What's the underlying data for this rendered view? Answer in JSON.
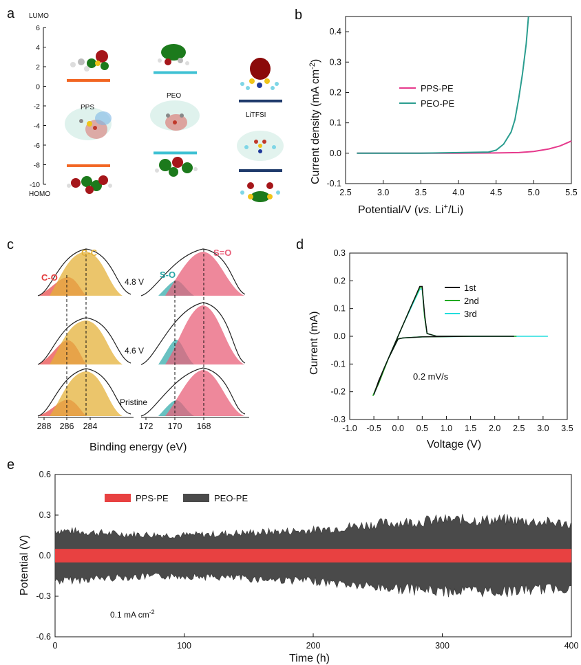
{
  "chart_data": [
    {
      "panel": "a",
      "type": "other",
      "ylabel_top": "LUMO",
      "ylabel_bottom": "HOMO",
      "yticks": [
        "6",
        "4",
        "2",
        "0",
        "-2",
        "-4",
        "-6",
        "-8",
        "-10"
      ],
      "ylim": [
        -10,
        6
      ],
      "molecules": [
        {
          "label": "PPS",
          "lumo": 0.6,
          "homo": -8.1,
          "color": "#f26522"
        },
        {
          "label": "PEO",
          "lumo": 1.4,
          "homo": -6.8,
          "color": "#3ec1d3"
        },
        {
          "label": "LiTFSI",
          "lumo": -1.5,
          "homo": -8.6,
          "color": "#1f3a6b"
        }
      ]
    },
    {
      "panel": "b",
      "type": "line",
      "xlabel": "Potential/V (vs. Li+/Li)",
      "ylabel": "Current density (mA cm-2)",
      "xlim": [
        2.5,
        5.5
      ],
      "ylim": [
        -0.1,
        0.45
      ],
      "xticks": [
        "2.5",
        "3.0",
        "3.5",
        "4.0",
        "4.5",
        "5.0",
        "5.5"
      ],
      "yticks": [
        "-0.1",
        "0.0",
        "0.1",
        "0.2",
        "0.3",
        "0.4"
      ],
      "legend": "center-left",
      "series": [
        {
          "name": "PPS-PE",
          "color": "#e6398c",
          "x": [
            2.65,
            3.0,
            3.5,
            4.0,
            4.5,
            4.8,
            5.0,
            5.2,
            5.35,
            5.5
          ],
          "y": [
            0.0,
            0.0,
            0.0,
            0.0,
            0.001,
            0.002,
            0.006,
            0.014,
            0.024,
            0.04
          ]
        },
        {
          "name": "PEO-PE",
          "color": "#2a9d8f",
          "x": [
            2.65,
            3.0,
            3.5,
            4.0,
            4.4,
            4.5,
            4.6,
            4.7,
            4.75,
            4.8,
            4.85,
            4.9,
            4.93
          ],
          "y": [
            0.0,
            0.0,
            0.0,
            0.002,
            0.004,
            0.01,
            0.03,
            0.07,
            0.11,
            0.18,
            0.26,
            0.36,
            0.45
          ]
        }
      ]
    },
    {
      "panel": "c",
      "type": "other",
      "xlabel": "Binding energy (eV)",
      "xticks_left": [
        "288",
        "286",
        "284"
      ],
      "xticks_right": [
        "172",
        "170",
        "168"
      ],
      "peaks_left": [
        "C-O",
        "C-C"
      ],
      "peaks_right": [
        "S-O",
        "S=O"
      ],
      "rows": [
        "4.8 V",
        "4.6 V",
        "Pristine"
      ]
    },
    {
      "panel": "d",
      "type": "line",
      "xlabel": "Voltage (V)",
      "ylabel": "Current (mA)",
      "xlim": [
        -1.0,
        3.5
      ],
      "ylim": [
        -0.3,
        0.3
      ],
      "xticks": [
        "-1.0",
        "-0.5",
        "0.0",
        "0.5",
        "1.0",
        "1.5",
        "2.0",
        "2.5",
        "3.0",
        "3.5"
      ],
      "yticks": [
        "-0.3",
        "-0.2",
        "-0.1",
        "0.0",
        "0.1",
        "0.2",
        "0.3"
      ],
      "annotation": "0.2 mV/s",
      "legend": "top-right",
      "series": [
        {
          "name": "1st",
          "color": "#111111",
          "x": [
            2.4,
            1.5,
            0.5,
            0.1,
            0.0,
            -0.2,
            -0.4,
            -0.5,
            -0.3,
            -0.1,
            0.1,
            0.3,
            0.45,
            0.5,
            0.55,
            0.6,
            0.8,
            1.5,
            2.4
          ],
          "y": [
            0.0,
            0.0,
            -0.002,
            -0.006,
            -0.01,
            -0.08,
            -0.16,
            -0.21,
            -0.12,
            -0.04,
            0.04,
            0.12,
            0.18,
            0.18,
            0.08,
            0.01,
            0.0,
            0.0,
            0.0
          ]
        },
        {
          "name": "2nd",
          "color": "#22aa22",
          "x": [
            2.45,
            1.5,
            0.5,
            0.1,
            0.0,
            -0.2,
            -0.4,
            -0.52,
            -0.3,
            -0.1,
            0.1,
            0.3,
            0.45,
            0.5,
            0.55,
            0.6,
            0.8,
            1.5,
            2.45
          ],
          "y": [
            0.0,
            0.0,
            -0.002,
            -0.006,
            -0.01,
            -0.08,
            -0.17,
            -0.215,
            -0.12,
            -0.04,
            0.04,
            0.12,
            0.175,
            0.175,
            0.07,
            0.01,
            0.0,
            0.0,
            0.0
          ]
        },
        {
          "name": "3rd",
          "color": "#22dddd",
          "x": [
            3.1,
            2.0,
            0.5,
            0.1,
            0.0,
            -0.2,
            -0.4,
            -0.5,
            -0.3,
            -0.1,
            0.1,
            0.3,
            0.45,
            0.5,
            0.55,
            0.6,
            0.8,
            2.0,
            3.1
          ],
          "y": [
            0.0,
            0.0,
            -0.002,
            -0.006,
            -0.01,
            -0.08,
            -0.165,
            -0.21,
            -0.12,
            -0.04,
            0.04,
            0.115,
            0.17,
            0.17,
            0.07,
            0.01,
            0.0,
            0.0,
            0.0
          ]
        }
      ]
    },
    {
      "panel": "e",
      "type": "area",
      "xlabel": "Time (h)",
      "ylabel": "Potential (V)",
      "xlim": [
        0,
        400
      ],
      "ylim": [
        -0.6,
        0.6
      ],
      "xticks": [
        "0",
        "100",
        "200",
        "300",
        "400"
      ],
      "yticks": [
        "0.6",
        "0.3",
        "0.0",
        "-0.3",
        "-0.6"
      ],
      "annotation": "0.1 mA cm-2",
      "legend": "top-left",
      "series": [
        {
          "name": "PPS-PE",
          "color": "#e84141",
          "band": 0.05
        },
        {
          "name": "PEO-PE",
          "color": "#4a4a4a",
          "x": [
            0,
            50,
            100,
            150,
            200,
            250,
            300,
            350,
            400
          ],
          "upper": [
            0.2,
            0.17,
            0.16,
            0.18,
            0.2,
            0.25,
            0.28,
            0.28,
            0.25
          ],
          "lower": [
            -0.2,
            -0.17,
            -0.16,
            -0.18,
            -0.2,
            -0.25,
            -0.28,
            -0.28,
            -0.25
          ]
        }
      ]
    }
  ],
  "labels": {
    "a": "a",
    "b": "b",
    "c": "c",
    "d": "d",
    "e": "e",
    "lumo": "LUMO",
    "homo": "HOMO",
    "pps": "PPS",
    "peo": "PEO",
    "litfsi": "LiTFSI",
    "b_xlabel_pre": "Potential/V (",
    "b_xlabel_vs": "vs.",
    "b_xlabel_li": " Li",
    "b_xlabel_plus": "+",
    "b_xlabel_post": "/Li)",
    "b_ylabel_main": "Current density (mA cm",
    "b_ylabel_sup": "-2",
    "b_ylabel_end": ")",
    "leg_pps": "PPS-PE",
    "leg_peo": "PEO-PE",
    "c_co": "C-O",
    "c_cc": "C-C",
    "c_so": "S-O",
    "c_seo": "S=O",
    "c_48": "4.8 V",
    "c_46": "4.6 V",
    "c_pr": "Pristine",
    "c_xlabel": "Binding energy (eV)",
    "d_xlabel": "Voltage (V)",
    "d_ylabel": "Current (mA)",
    "d_1": "1st",
    "d_2": "2nd",
    "d_3": "3rd",
    "d_ann": "0.2 mV/s",
    "e_xlabel": "Time (h)",
    "e_ylabel": "Potential (V)",
    "e_ann_main": "0.1 mA cm",
    "e_ann_sup": "-2"
  }
}
